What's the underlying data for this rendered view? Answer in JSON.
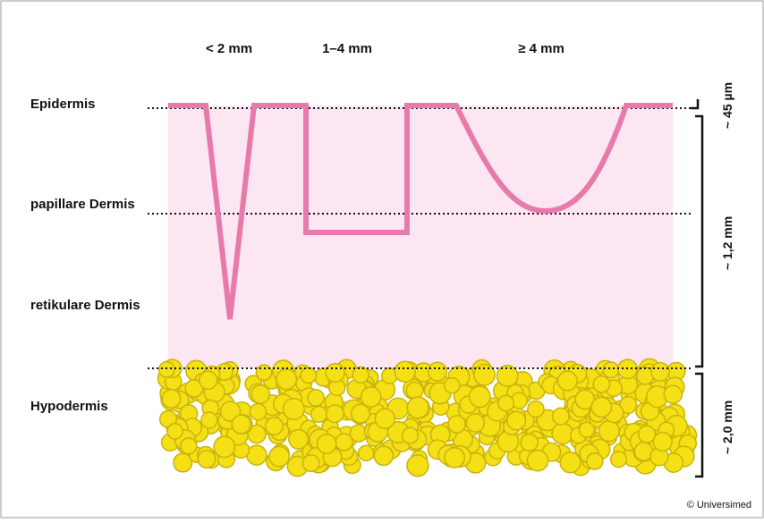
{
  "columns": [
    "< 2 mm",
    "1–4 mm",
    "≥ 4 mm"
  ],
  "layers": [
    "Epidermis",
    "papillare Dermis",
    "retikulare Dermis",
    "Hypodermis"
  ],
  "scales": [
    "~ 45 µm",
    "~ 1,2 mm",
    "~ 2,0 mm"
  ],
  "footer": {
    "copyright": "© Universimed"
  }
}
